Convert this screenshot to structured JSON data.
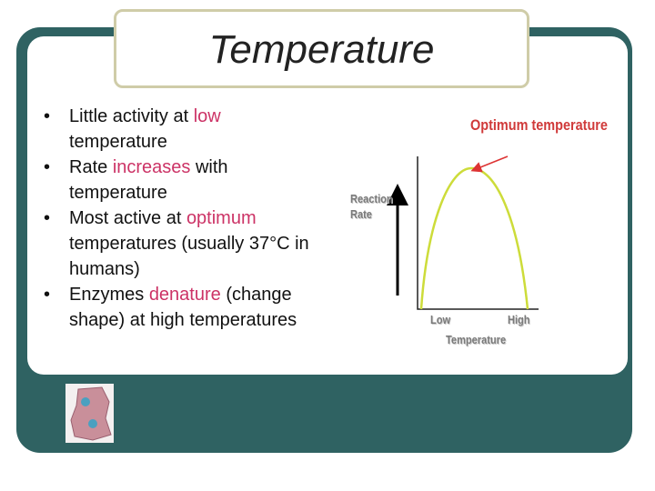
{
  "title": "Temperature",
  "bullets": [
    [
      "Little activity at ",
      "low",
      " temperature"
    ],
    [
      "Rate ",
      "increases",
      " with temperature"
    ],
    [
      "Most active at ",
      "optimum",
      " temperatures (usually 37°C in humans)"
    ],
    [
      "Enzymes ",
      "denature",
      " (change shape)  at high temperatures"
    ]
  ],
  "diagram": {
    "peak_label": "Optimum temperature",
    "y_label": "Reaction Rate",
    "x_low": "Low",
    "x_high": "High",
    "x_label": "Temperature"
  }
}
